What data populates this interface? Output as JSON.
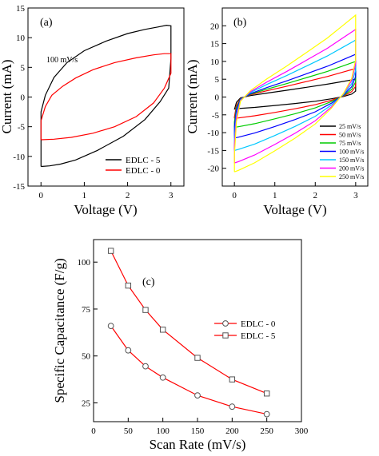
{
  "chart_data": [
    {
      "panel": "(a)",
      "type": "line",
      "xlabel": "Voltage (V)",
      "ylabel": "Current (mA)",
      "xlim": [
        -0.3,
        3.3
      ],
      "ylim": [
        -15,
        15
      ],
      "xticks": [
        "0",
        "1",
        "2",
        "3"
      ],
      "yticks": [
        "-15",
        "-10",
        "-5",
        "0",
        "5",
        "10",
        "15"
      ],
      "annotation": "100 mV/s",
      "legend_position": "bottom-right",
      "series": [
        {
          "name": "EDLC - 5",
          "color": "#000000",
          "x": [
            0,
            0.2,
            0.45,
            0.8,
            1.3,
            1.9,
            2.4,
            2.75,
            2.95,
            3.0,
            3.0,
            2.9,
            2.7,
            2.4,
            2.0,
            1.5,
            1.0,
            0.6,
            0.3,
            0.1,
            0.0,
            0.0
          ],
          "y": [
            -11.7,
            -11.6,
            -11.3,
            -10.6,
            -9.0,
            -6.6,
            -3.8,
            -0.8,
            1.5,
            6.5,
            12.0,
            12.1,
            11.8,
            11.4,
            10.7,
            9.4,
            7.8,
            5.8,
            3.3,
            0.3,
            -2.5,
            -11.7
          ]
        },
        {
          "name": "EDLC - 0",
          "color": "#ff0000",
          "x": [
            0,
            0.3,
            0.7,
            1.2,
            1.7,
            2.2,
            2.6,
            2.85,
            3.0,
            3.0,
            2.85,
            2.6,
            2.2,
            1.7,
            1.2,
            0.8,
            0.5,
            0.25,
            0.1,
            0.0,
            0.0
          ],
          "y": [
            -7.2,
            -7.1,
            -6.8,
            -6.1,
            -5.0,
            -3.3,
            -1.0,
            1.5,
            4.0,
            7.3,
            7.3,
            7.1,
            6.6,
            5.8,
            4.6,
            3.2,
            1.8,
            0.3,
            -1.6,
            -4.0,
            -7.2
          ]
        }
      ]
    },
    {
      "panel": "(b)",
      "type": "line",
      "xlabel": "Voltage (V)",
      "ylabel": "Current (mA)",
      "xlim": [
        -0.3,
        3.3
      ],
      "ylim": [
        -25,
        25
      ],
      "xticks": [
        "0",
        "1",
        "2",
        "3"
      ],
      "yticks": [
        "-20",
        "-15",
        "-10",
        "-5",
        "0",
        "5",
        "10",
        "15",
        "20"
      ],
      "legend_position": "bottom-right",
      "series": [
        {
          "name": "25 mV/s",
          "color": "#000000",
          "top": 5,
          "bottom": -3.3,
          "kink": 0.5
        },
        {
          "name": "50 mV/s",
          "color": "#ff0000",
          "top": 8,
          "bottom": -6,
          "kink": 1
        },
        {
          "name": "75 mV/s",
          "color": "#00cc00",
          "top": 10,
          "bottom": -8.5,
          "kink": 1.5
        },
        {
          "name": "100 mV/s",
          "color": "#0000ff",
          "top": 12,
          "bottom": -11.5,
          "kink": 2
        },
        {
          "name": "150 mV/s",
          "color": "#00c8ff",
          "top": 16,
          "bottom": -15,
          "kink": 2.5
        },
        {
          "name": "200 mV/s",
          "color": "#ff00ff",
          "top": 19,
          "bottom": -18.5,
          "kink": 3
        },
        {
          "name": "250 mV/s",
          "color": "#ffff00",
          "top": 23,
          "bottom": -21,
          "kink": 3.5
        }
      ]
    },
    {
      "panel": "(c)",
      "type": "line",
      "xlabel": "Scan Rate (mV/s)",
      "ylabel": "Specific Capacitance (F/g)",
      "xlim": [
        0,
        300
      ],
      "ylim": [
        15,
        112
      ],
      "xticks": [
        "0",
        "50",
        "100",
        "150",
        "200",
        "250",
        "300"
      ],
      "yticks": [
        "25",
        "50",
        "75",
        "100"
      ],
      "legend_position": "center-right",
      "series": [
        {
          "name": "EDLC - 0",
          "color": "#ff0000",
          "marker": "circle",
          "x": [
            25,
            50,
            75,
            100,
            150,
            200,
            250
          ],
          "y": [
            66,
            53,
            44.5,
            38.5,
            29,
            23,
            19
          ]
        },
        {
          "name": "EDLC - 5",
          "color": "#ff0000",
          "marker": "square",
          "x": [
            25,
            50,
            75,
            100,
            150,
            200,
            250
          ],
          "y": [
            106,
            87.5,
            74.5,
            64,
            49,
            37.5,
            30
          ]
        }
      ]
    }
  ]
}
